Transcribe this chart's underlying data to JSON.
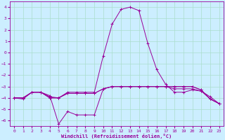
{
  "xlabel": "Windchill (Refroidissement éolien,°C)",
  "bg_color": "#cceeff",
  "grid_color": "#aaddcc",
  "line_color": "#990099",
  "xlim": [
    -0.5,
    23.5
  ],
  "ylim": [
    -6.5,
    4.5
  ],
  "xticks": [
    0,
    1,
    2,
    3,
    4,
    5,
    6,
    7,
    8,
    9,
    10,
    11,
    12,
    13,
    14,
    15,
    16,
    17,
    18,
    19,
    20,
    21,
    22,
    23
  ],
  "yticks": [
    -6,
    -5,
    -4,
    -3,
    -2,
    -1,
    0,
    1,
    2,
    3,
    4
  ],
  "lines": [
    {
      "x": [
        0,
        1,
        2,
        3,
        4,
        5,
        6,
        7,
        8,
        9,
        10,
        11,
        12,
        13,
        14,
        15,
        16,
        17,
        18,
        19,
        20,
        21,
        22,
        23
      ],
      "y": [
        -4.0,
        -4.1,
        -3.5,
        -3.5,
        -3.8,
        -6.3,
        -5.2,
        -5.5,
        -5.5,
        -5.5,
        -3.2,
        -3.0,
        -3.0,
        -3.0,
        -3.0,
        -3.0,
        -3.0,
        -3.0,
        -3.0,
        -3.0,
        -3.0,
        -3.3,
        -4.1,
        -4.5
      ]
    },
    {
      "x": [
        0,
        1,
        2,
        3,
        4,
        5,
        6,
        7,
        8,
        9,
        10,
        11,
        12,
        13,
        14,
        15,
        16,
        17,
        18,
        19,
        20,
        21,
        22,
        23
      ],
      "y": [
        -4.0,
        -4.0,
        -3.5,
        -3.5,
        -4.0,
        -4.0,
        -3.6,
        -3.6,
        -3.6,
        -3.6,
        -3.2,
        -3.0,
        -3.0,
        -3.0,
        -3.0,
        -3.0,
        -3.0,
        -3.0,
        -3.0,
        -3.0,
        -3.0,
        -3.3,
        -4.1,
        -4.5
      ]
    },
    {
      "x": [
        0,
        1,
        2,
        3,
        4,
        5,
        6,
        7,
        8,
        9,
        10,
        11,
        12,
        13,
        14,
        15,
        16,
        17,
        18,
        19,
        20,
        21,
        22,
        23
      ],
      "y": [
        -4.0,
        -4.0,
        -3.5,
        -3.5,
        -3.9,
        -4.0,
        -3.6,
        -3.6,
        -3.6,
        -3.6,
        -3.2,
        -3.0,
        -3.0,
        -3.0,
        -3.0,
        -3.0,
        -3.0,
        -3.0,
        -3.2,
        -3.2,
        -3.2,
        -3.4,
        -4.1,
        -4.5
      ]
    },
    {
      "x": [
        0,
        1,
        2,
        3,
        4,
        5,
        6,
        7,
        8,
        9,
        10,
        11,
        12,
        13,
        14,
        15,
        16,
        17,
        18,
        19,
        20,
        21,
        22,
        23
      ],
      "y": [
        -4.0,
        -4.0,
        -3.5,
        -3.5,
        -4.0,
        -4.0,
        -3.5,
        -3.5,
        -3.5,
        -3.5,
        -0.3,
        2.5,
        3.8,
        4.0,
        3.7,
        0.8,
        -1.5,
        -2.8,
        -3.5,
        -3.5,
        -3.3,
        -3.4,
        -3.9,
        -4.5
      ]
    }
  ]
}
